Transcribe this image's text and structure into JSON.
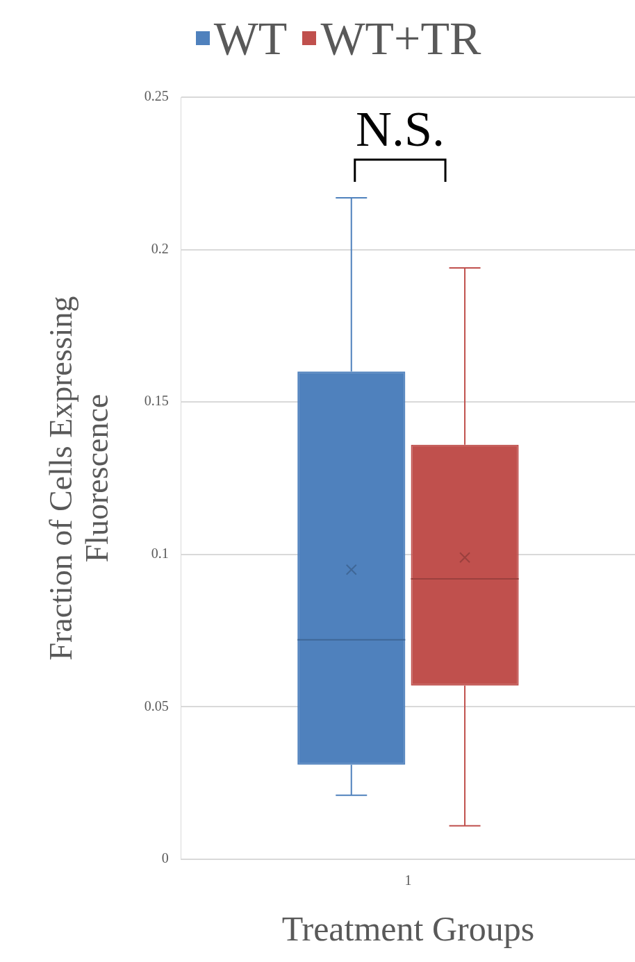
{
  "chart_data": {
    "type": "box",
    "xlabel": "Treatment Groups",
    "ylabel": "Fraction of Cells Expressing\nFluorescence",
    "categories": [
      "1"
    ],
    "series": [
      {
        "name": "WT",
        "color": "#4f81bd",
        "boxes": [
          {
            "low": 0.021,
            "q1": 0.031,
            "median": 0.072,
            "q3": 0.16,
            "high": 0.217,
            "mean": 0.095
          }
        ]
      },
      {
        "name": "WT+TR",
        "color": "#c0504d",
        "boxes": [
          {
            "low": 0.011,
            "q1": 0.057,
            "median": 0.092,
            "q3": 0.136,
            "high": 0.194,
            "mean": 0.099
          }
        ]
      }
    ],
    "ylim": [
      0,
      0.25
    ],
    "yticks": [
      0,
      0.05,
      0.1,
      0.15,
      0.2,
      0.25
    ],
    "grid": "y",
    "legend": "top",
    "annotations": [
      "N.S."
    ]
  }
}
